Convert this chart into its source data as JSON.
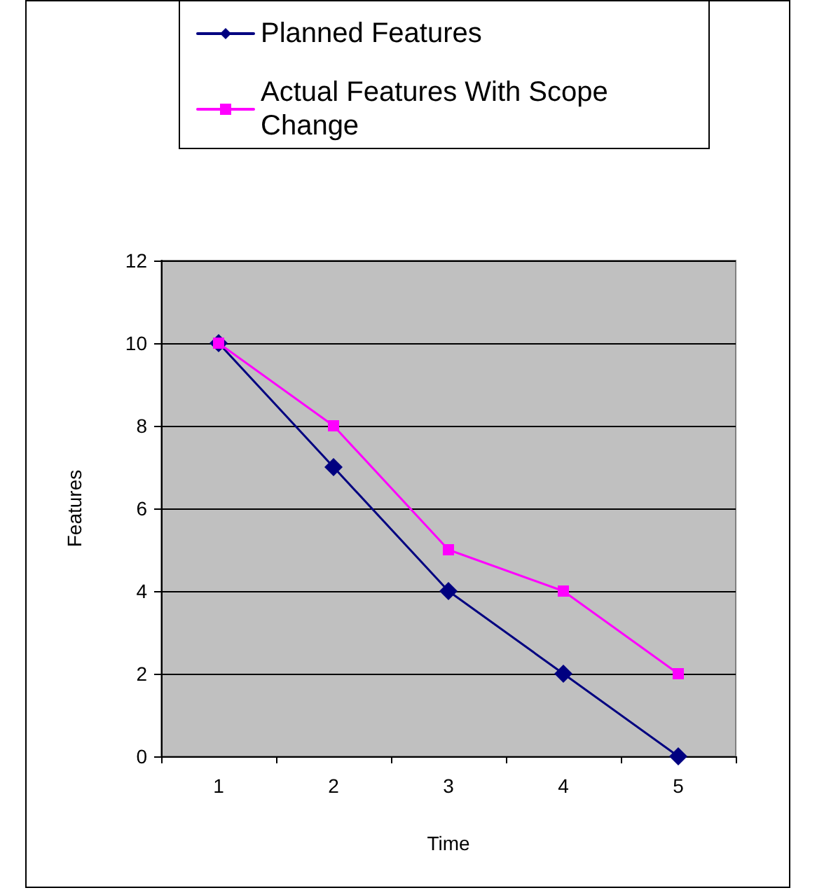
{
  "chart_data": {
    "type": "line",
    "xlabel": "Time",
    "ylabel": "Features",
    "categories": [
      "1",
      "2",
      "3",
      "4",
      "5"
    ],
    "series": [
      {
        "name": "Planned Features",
        "color": "#000080",
        "marker": "diamond",
        "values": [
          10,
          7,
          4,
          2,
          0
        ]
      },
      {
        "name": "Actual Features With Scope Change",
        "color": "#ff00ff",
        "marker": "square",
        "values": [
          10,
          8,
          5,
          4,
          2
        ]
      }
    ],
    "ylim": [
      0,
      12
    ],
    "yticks": [
      0,
      2,
      4,
      6,
      8,
      10,
      12
    ],
    "grid": "y",
    "legend": "top",
    "line_style": "solid"
  }
}
